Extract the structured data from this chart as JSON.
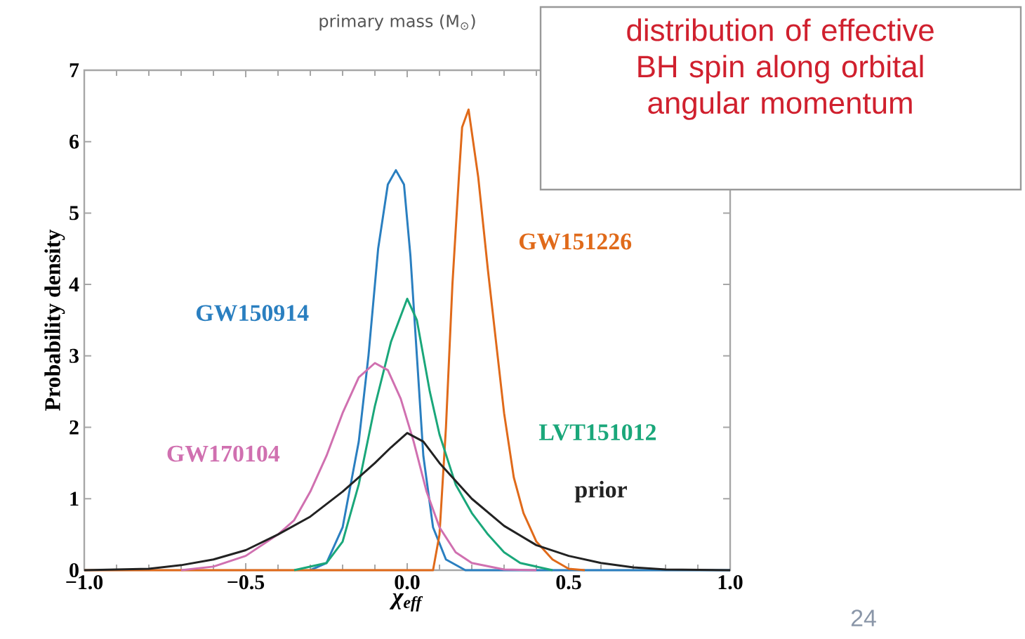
{
  "chart_data": {
    "type": "line",
    "title": "distribution of effective BH spin along orbital angular momentum",
    "xlabel": "χ$_{eff}$",
    "ylabel": "Probability density",
    "annotations": [
      "primary mass (M$_{⊙}$)",
      "24"
    ],
    "xlim": [
      -1.0,
      1.0
    ],
    "ylim": [
      0,
      7
    ],
    "xticks": [
      {
        "value": -1.0,
        "label": "−1.0"
      },
      {
        "value": -0.5,
        "label": "−0.5"
      },
      {
        "value": 0.0,
        "label": "0.0"
      },
      {
        "value": 0.5,
        "label": "0.5"
      },
      {
        "value": 1.0,
        "label": "1.0"
      }
    ],
    "yticks": [
      0,
      1,
      2,
      3,
      4,
      5,
      6,
      7
    ],
    "series": [
      {
        "name": "GW150914",
        "color": "#2a7fc0",
        "x": [
          -0.3,
          -0.25,
          -0.2,
          -0.15,
          -0.12,
          -0.09,
          -0.06,
          -0.035,
          -0.01,
          0.01,
          0.03,
          0.05,
          0.08,
          0.12,
          0.18,
          1.0
        ],
        "values": [
          0,
          0.1,
          0.6,
          1.8,
          3.0,
          4.5,
          5.4,
          5.6,
          5.4,
          4.4,
          3.0,
          1.6,
          0.6,
          0.15,
          0,
          0
        ]
      },
      {
        "name": "GW151226",
        "color": "#e06a1a",
        "x": [
          -1.0,
          0.08,
          0.1,
          0.12,
          0.14,
          0.16,
          0.17,
          0.19,
          0.22,
          0.25,
          0.28,
          0.3,
          0.33,
          0.36,
          0.4,
          0.45,
          0.5,
          0.55
        ],
        "values": [
          0,
          0,
          0.5,
          2.0,
          4.0,
          5.5,
          6.2,
          6.45,
          5.5,
          4.2,
          3.0,
          2.2,
          1.3,
          0.8,
          0.4,
          0.15,
          0.02,
          0
        ]
      },
      {
        "name": "LVT151012",
        "color": "#1aa77a",
        "x": [
          -0.35,
          -0.25,
          -0.2,
          -0.15,
          -0.1,
          -0.05,
          0.0,
          0.03,
          0.07,
          0.1,
          0.15,
          0.2,
          0.25,
          0.3,
          0.35,
          0.45
        ],
        "values": [
          0,
          0.1,
          0.4,
          1.2,
          2.3,
          3.2,
          3.8,
          3.5,
          2.5,
          1.9,
          1.2,
          0.8,
          0.5,
          0.25,
          0.1,
          0
        ]
      },
      {
        "name": "GW170104",
        "color": "#d070b0",
        "x": [
          -0.7,
          -0.6,
          -0.5,
          -0.4,
          -0.35,
          -0.3,
          -0.25,
          -0.2,
          -0.15,
          -0.1,
          -0.06,
          -0.02,
          0.02,
          0.06,
          0.1,
          0.15,
          0.2,
          0.3,
          0.4
        ],
        "values": [
          0,
          0.05,
          0.2,
          0.5,
          0.7,
          1.1,
          1.6,
          2.2,
          2.7,
          2.9,
          2.8,
          2.4,
          1.8,
          1.1,
          0.6,
          0.25,
          0.1,
          0.01,
          0
        ]
      },
      {
        "name": "prior",
        "color": "#222222",
        "x": [
          -1.0,
          -0.8,
          -0.7,
          -0.6,
          -0.5,
          -0.4,
          -0.3,
          -0.2,
          -0.1,
          -0.05,
          0.0,
          0.05,
          0.1,
          0.2,
          0.3,
          0.4,
          0.5,
          0.6,
          0.7,
          0.8,
          1.0
        ],
        "values": [
          0,
          0.02,
          0.07,
          0.15,
          0.28,
          0.5,
          0.75,
          1.1,
          1.5,
          1.72,
          1.92,
          1.8,
          1.5,
          1.0,
          0.62,
          0.35,
          0.2,
          0.1,
          0.04,
          0.01,
          0
        ]
      }
    ]
  }
}
